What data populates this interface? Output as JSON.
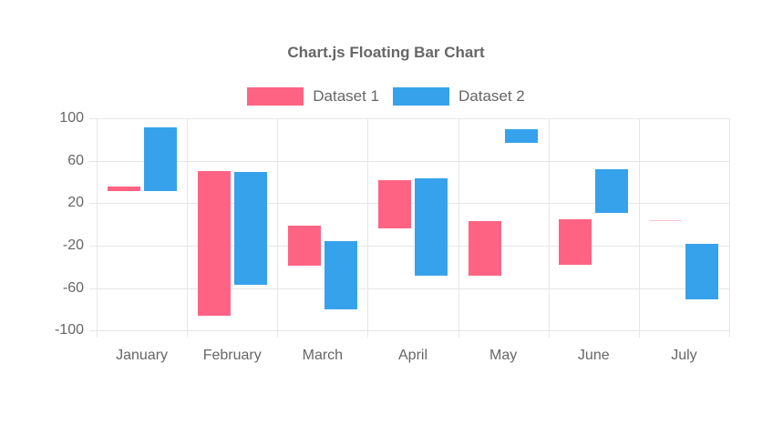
{
  "chart_data": {
    "type": "bar",
    "variant": "floating",
    "title": "Chart.js Floating Bar Chart",
    "categories": [
      "January",
      "February",
      "March",
      "April",
      "May",
      "June",
      "July"
    ],
    "series": [
      {
        "name": "Dataset 1",
        "color": "#FF6384",
        "values": [
          [
            31,
            36
          ],
          [
            -86,
            50
          ],
          [
            -39,
            -1
          ],
          [
            -4,
            42
          ],
          [
            -48,
            3
          ],
          [
            -38,
            5
          ],
          [
            3,
            4
          ]
        ]
      },
      {
        "name": "Dataset 2",
        "color": "#36A2EB",
        "values": [
          [
            31,
            91
          ],
          [
            -57,
            49
          ],
          [
            -80,
            -16
          ],
          [
            -48,
            43
          ],
          [
            77,
            90
          ],
          [
            11,
            52
          ],
          [
            -71,
            -18
          ]
        ]
      }
    ],
    "ylim": [
      -100,
      100
    ],
    "y_ticks": [
      100,
      60,
      20,
      -20,
      -60,
      -100
    ],
    "grid": true,
    "legend_position": "top",
    "axis_text_color": "#666666",
    "grid_color": "#e6e6e6"
  }
}
